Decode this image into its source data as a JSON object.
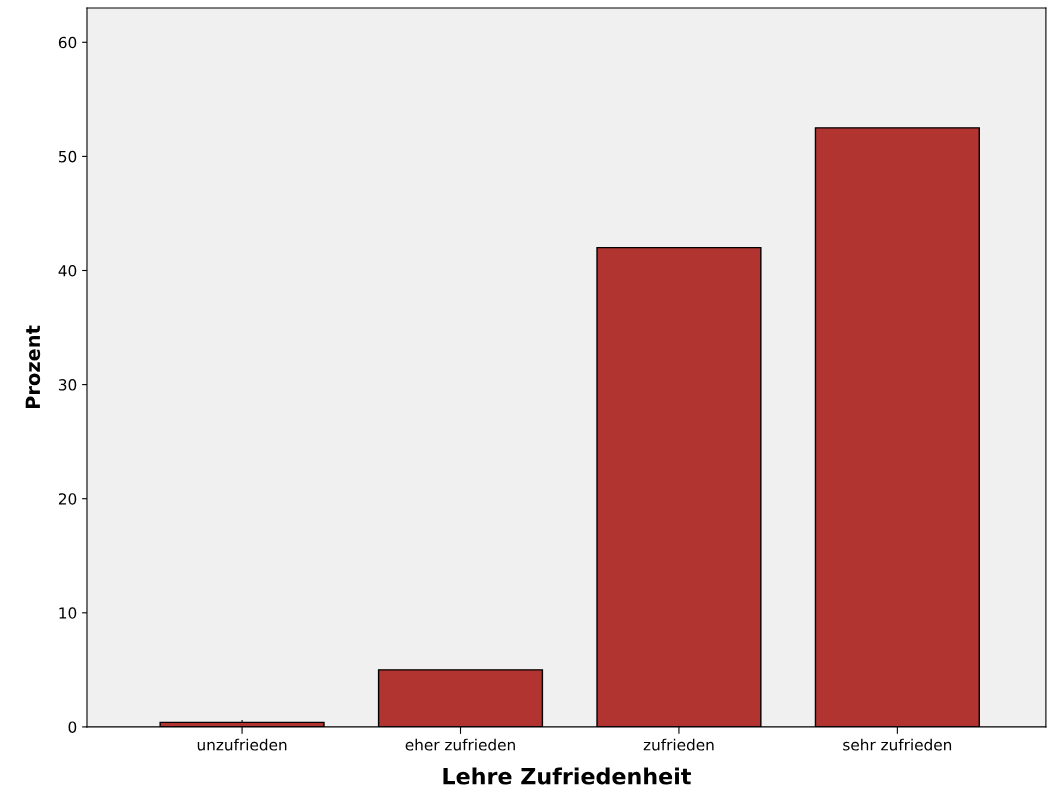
{
  "chart_data": {
    "type": "bar",
    "xlabel": "Lehre Zufriedenheit",
    "ylabel": "Prozent",
    "categories": [
      "unzufrieden",
      "eher zufrieden",
      "zufrieden",
      "sehr zufrieden"
    ],
    "values": [
      0.4,
      5.0,
      42.0,
      52.5
    ],
    "color": "#b23431",
    "ylim": [
      0,
      63
    ],
    "yticks": [
      0,
      10,
      20,
      30,
      40,
      50,
      60
    ],
    "grid": false
  }
}
